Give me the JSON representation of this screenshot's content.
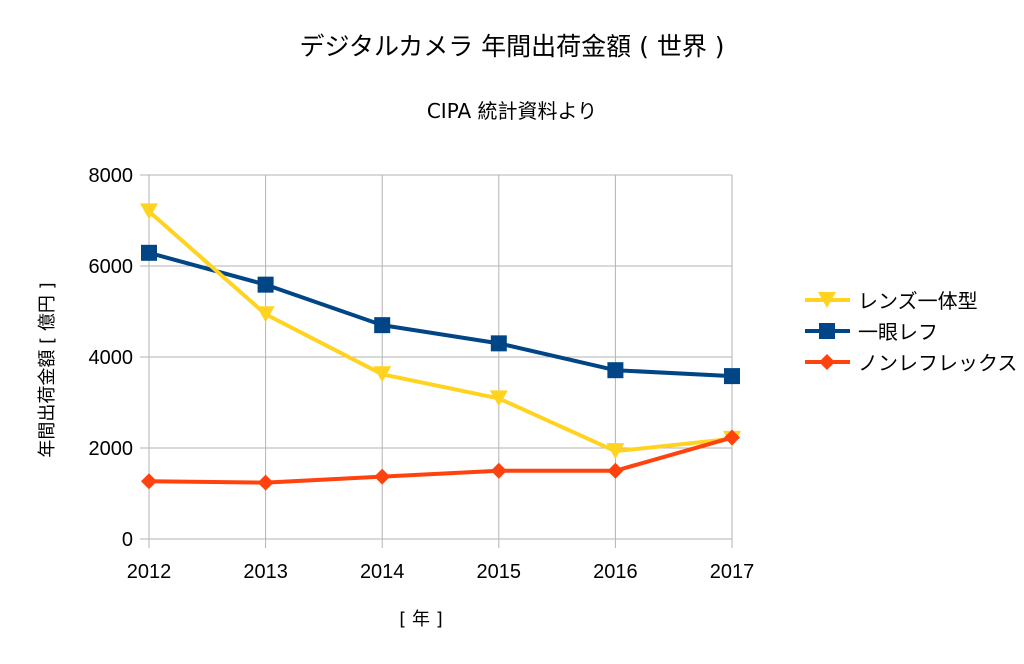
{
  "chart_data": {
    "type": "line",
    "title": "デジタルカメラ  年間出荷金額 ( 世界 )",
    "subtitle": "CIPA 統計資料より",
    "xlabel": "[ 年 ]",
    "ylabel": "年間出荷金額 [ 億円 ]",
    "categories": [
      "2012",
      "2013",
      "2014",
      "2015",
      "2016",
      "2017"
    ],
    "ylim": [
      0,
      8000
    ],
    "yticks": [
      0,
      2000,
      4000,
      6000,
      8000
    ],
    "ytick_labels": [
      "0",
      "2000",
      "4000",
      "6000",
      "8000"
    ],
    "grid": true,
    "legend_position": "right",
    "series": [
      {
        "name": "レンズ一体型",
        "color": "#FFD320",
        "marker": "triangle-down",
        "values": [
          7200,
          4940,
          3620,
          3090,
          1930,
          2200
        ]
      },
      {
        "name": "一眼レフ",
        "color": "#004586",
        "marker": "square",
        "values": [
          6290,
          5590,
          4700,
          4300,
          3710,
          3580
        ]
      },
      {
        "name": "ノンレフレックス",
        "color": "#FF420E",
        "marker": "diamond",
        "values": [
          1270,
          1240,
          1370,
          1500,
          1500,
          2230
        ]
      }
    ]
  }
}
